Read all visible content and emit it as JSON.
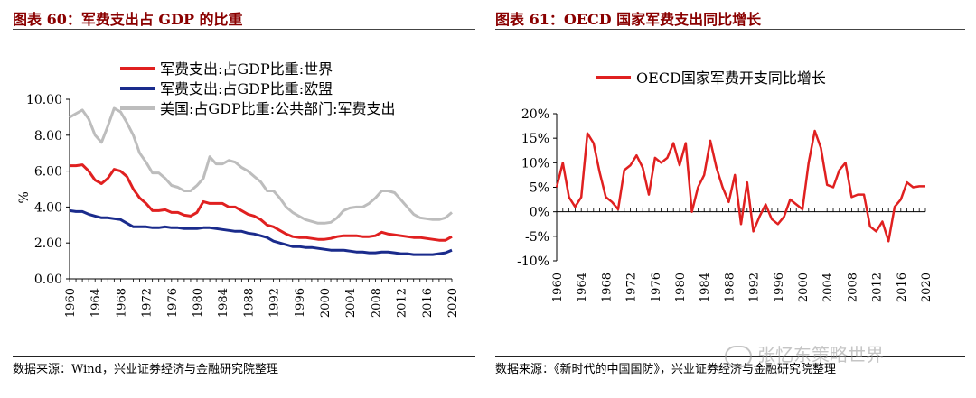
{
  "left_panel": {
    "title": "图表 60：军费支出占 GDP 的比重",
    "source": "数据来源：Wind，兴业证券经济与金融研究院整理"
  },
  "right_panel": {
    "title": "图表 61：OECD 国家军费支出同比增长",
    "source": "数据来源：《新时代的中国国防》，兴业证券经济与金融研究院整理"
  },
  "watermark": "张忆东策略世界",
  "chart_data": [
    {
      "type": "line",
      "ylabel": "%",
      "ylim": [
        0,
        10
      ],
      "yticks": [
        "10.00",
        "8.00",
        "6.00",
        "4.00",
        "2.00",
        "0.00"
      ],
      "xticks": [
        "1960",
        "1964",
        "1968",
        "1972",
        "1976",
        "1980",
        "1984",
        "1988",
        "1992",
        "1996",
        "2000",
        "2004",
        "2008",
        "2012",
        "2016",
        "2020"
      ],
      "legend_position": "top-center",
      "x": [
        1960,
        1961,
        1962,
        1963,
        1964,
        1965,
        1966,
        1967,
        1968,
        1969,
        1970,
        1971,
        1972,
        1973,
        1974,
        1975,
        1976,
        1977,
        1978,
        1979,
        1980,
        1981,
        1982,
        1983,
        1984,
        1985,
        1986,
        1987,
        1988,
        1989,
        1990,
        1991,
        1992,
        1993,
        1994,
        1995,
        1996,
        1997,
        1998,
        1999,
        2000,
        2001,
        2002,
        2003,
        2004,
        2005,
        2006,
        2007,
        2008,
        2009,
        2010,
        2011,
        2012,
        2013,
        2014,
        2015,
        2016,
        2017,
        2018,
        2019,
        2020
      ],
      "series": [
        {
          "name": "军费支出:占GDP比重:世界",
          "color": "#e02020",
          "values": [
            6.3,
            6.3,
            6.35,
            6.0,
            5.5,
            5.3,
            5.6,
            6.1,
            6.0,
            5.7,
            5.0,
            4.5,
            4.2,
            3.8,
            3.8,
            3.85,
            3.7,
            3.7,
            3.55,
            3.5,
            3.7,
            4.3,
            4.2,
            4.2,
            4.2,
            4.0,
            4.0,
            3.8,
            3.6,
            3.5,
            3.3,
            3.0,
            2.9,
            2.7,
            2.5,
            2.35,
            2.3,
            2.3,
            2.25,
            2.2,
            2.2,
            2.25,
            2.35,
            2.4,
            2.4,
            2.4,
            2.35,
            2.35,
            2.4,
            2.6,
            2.5,
            2.45,
            2.4,
            2.35,
            2.3,
            2.3,
            2.25,
            2.2,
            2.15,
            2.15,
            2.35
          ]
        },
        {
          "name": "军费支出:占GDP比重:欧盟",
          "color": "#1a2b8c",
          "values": [
            3.8,
            3.75,
            3.75,
            3.6,
            3.5,
            3.4,
            3.4,
            3.35,
            3.3,
            3.1,
            2.9,
            2.9,
            2.9,
            2.85,
            2.85,
            2.9,
            2.85,
            2.85,
            2.8,
            2.8,
            2.8,
            2.85,
            2.85,
            2.8,
            2.75,
            2.7,
            2.65,
            2.65,
            2.55,
            2.5,
            2.4,
            2.3,
            2.1,
            2.0,
            1.9,
            1.8,
            1.8,
            1.75,
            1.75,
            1.7,
            1.65,
            1.6,
            1.6,
            1.6,
            1.55,
            1.5,
            1.5,
            1.45,
            1.45,
            1.5,
            1.5,
            1.45,
            1.4,
            1.4,
            1.35,
            1.35,
            1.35,
            1.35,
            1.4,
            1.45,
            1.6
          ]
        },
        {
          "name": "美国:占GDP比重:公共部门:军费支出",
          "color": "#bdbdbd",
          "values": [
            9.0,
            9.2,
            9.4,
            8.9,
            8.0,
            7.6,
            8.5,
            9.5,
            9.3,
            8.7,
            8.0,
            7.0,
            6.5,
            5.9,
            5.9,
            5.6,
            5.2,
            5.1,
            4.9,
            4.9,
            5.2,
            5.6,
            6.8,
            6.4,
            6.4,
            6.6,
            6.5,
            6.2,
            6.0,
            5.7,
            5.4,
            4.9,
            4.9,
            4.5,
            4.0,
            3.7,
            3.5,
            3.3,
            3.2,
            3.1,
            3.1,
            3.15,
            3.4,
            3.8,
            3.95,
            4.0,
            4.0,
            4.2,
            4.5,
            4.9,
            4.9,
            4.8,
            4.4,
            4.0,
            3.6,
            3.4,
            3.35,
            3.3,
            3.3,
            3.4,
            3.7
          ]
        }
      ]
    },
    {
      "type": "line",
      "ylim": [
        -10,
        20
      ],
      "yticks": [
        "20%",
        "15%",
        "10%",
        "5%",
        "0%",
        "-5%",
        "-10%"
      ],
      "xticks": [
        "1960",
        "1964",
        "1968",
        "1972",
        "1976",
        "1980",
        "1984",
        "1988",
        "1992",
        "1996",
        "2000",
        "2004",
        "2008",
        "2012",
        "2016",
        "2020"
      ],
      "legend_position": "top",
      "x": [
        1960,
        1961,
        1962,
        1963,
        1964,
        1965,
        1966,
        1967,
        1968,
        1969,
        1970,
        1971,
        1972,
        1973,
        1974,
        1975,
        1976,
        1977,
        1978,
        1979,
        1980,
        1981,
        1982,
        1983,
        1984,
        1985,
        1986,
        1987,
        1988,
        1989,
        1990,
        1991,
        1992,
        1993,
        1994,
        1995,
        1996,
        1997,
        1998,
        1999,
        2000,
        2001,
        2002,
        2003,
        2004,
        2005,
        2006,
        2007,
        2008,
        2009,
        2010,
        2011,
        2012,
        2013,
        2014,
        2015,
        2016,
        2017,
        2018,
        2019,
        2020
      ],
      "series": [
        {
          "name": "OECD国家军费开支同比增长",
          "color": "#e02020",
          "values": [
            5,
            10,
            3,
            1,
            3,
            16,
            14,
            8,
            3,
            2,
            0.5,
            8.5,
            9.5,
            11.5,
            9,
            3.5,
            11,
            10,
            11,
            14,
            9.5,
            14,
            0,
            5,
            7.5,
            14.5,
            9,
            5,
            2,
            7.5,
            -2.5,
            6,
            -4,
            -1,
            1.5,
            -1.5,
            -2.5,
            -1,
            2.5,
            1.5,
            0.5,
            10,
            16.5,
            13,
            5.5,
            5,
            8.5,
            10,
            3,
            3.5,
            3.5,
            -3,
            -4,
            -2,
            -6,
            1,
            2.5,
            6,
            5,
            5.2,
            5.2
          ]
        }
      ]
    }
  ]
}
